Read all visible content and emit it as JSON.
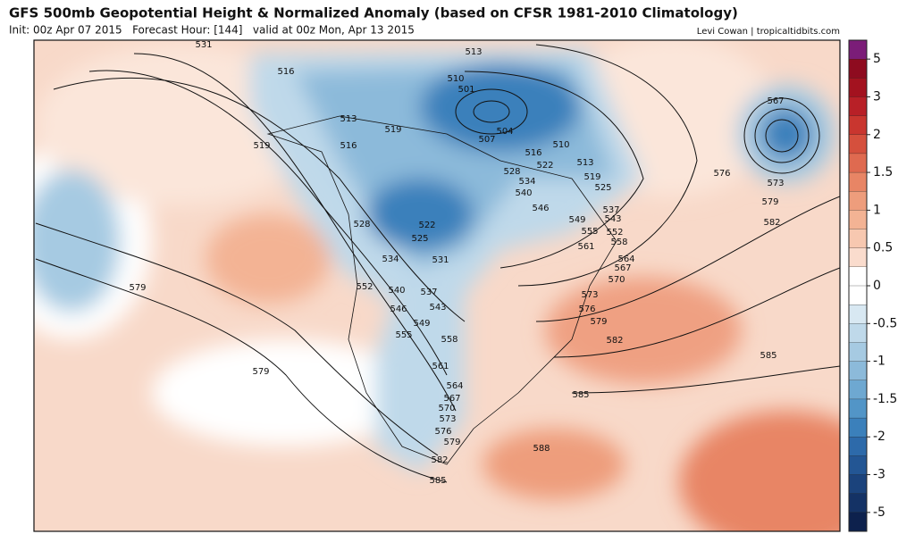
{
  "header": {
    "title": "GFS 500mb Geopotential Height & Normalized Anomaly (based on CFSR 1981-2010 Climatology)",
    "init": "Init: 00z Apr 07 2015   Forecast Hour: [144]   valid at 00z Mon, Apr 13 2015",
    "credit": "Levi Cowan | tropicaltidbits.com"
  },
  "colorbar": {
    "ticks": [
      5,
      3,
      2,
      1.5,
      1,
      0.5,
      0,
      -0.5,
      -1,
      -1.5,
      -2,
      -3,
      -5
    ],
    "colors": [
      "#7b1d78",
      "#8e0b1f",
      "#a3121f",
      "#b82027",
      "#c9362f",
      "#d5503d",
      "#df6a50",
      "#e88565",
      "#ee9d7c",
      "#f3b394",
      "#f7c8b0",
      "#fadccd",
      "#ffffff",
      "#ffffff",
      "#d8e8f2",
      "#bfd9ea",
      "#a6cae2",
      "#8cbada",
      "#6ea8d1",
      "#5295c7",
      "#3b80bb",
      "#2d6aaa",
      "#235694",
      "#1b437c",
      "#143265",
      "#0d214d"
    ]
  },
  "map": {
    "contour_labels": [
      531,
      516,
      513,
      510,
      501,
      513,
      519,
      516,
      519,
      504,
      507,
      510,
      516,
      522,
      513,
      528,
      534,
      519,
      525,
      540,
      546,
      537,
      549,
      543,
      555,
      552,
      558,
      561,
      564,
      567,
      570,
      573,
      576,
      579,
      582,
      567,
      576,
      573,
      579,
      582,
      585,
      585,
      588,
      528,
      522,
      525,
      534,
      531,
      552,
      540,
      537,
      546,
      543,
      549,
      555,
      558,
      561,
      564,
      567,
      570,
      573,
      576,
      579,
      582,
      585,
      579,
      579
    ]
  }
}
